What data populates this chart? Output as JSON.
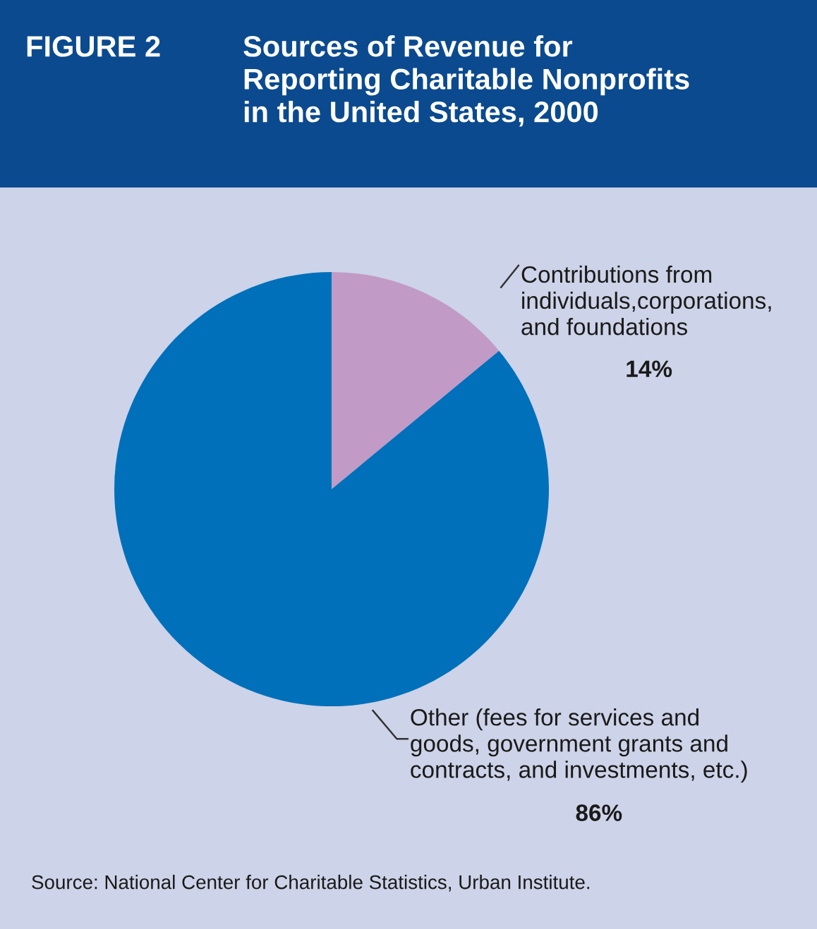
{
  "chart_data": {
    "type": "pie",
    "title": "FIGURE 2",
    "subtitle": "Sources of Revenue for\nReporting Charitable Nonprofits\nin the United States, 2000",
    "categories": [
      "Contributions from\nindividuals,corporations,\nand foundations",
      "Other (fees for services and\ngoods, government grants and\ncontracts, and investments, etc.)"
    ],
    "values": [
      14,
      86
    ],
    "colors": [
      "#c29ac6",
      "#0070ba"
    ],
    "value_labels": [
      "14%",
      "86%"
    ],
    "annotations": [
      "Source: National Center for Charitable Statistics, Urban Institute."
    ],
    "legend": false
  }
}
